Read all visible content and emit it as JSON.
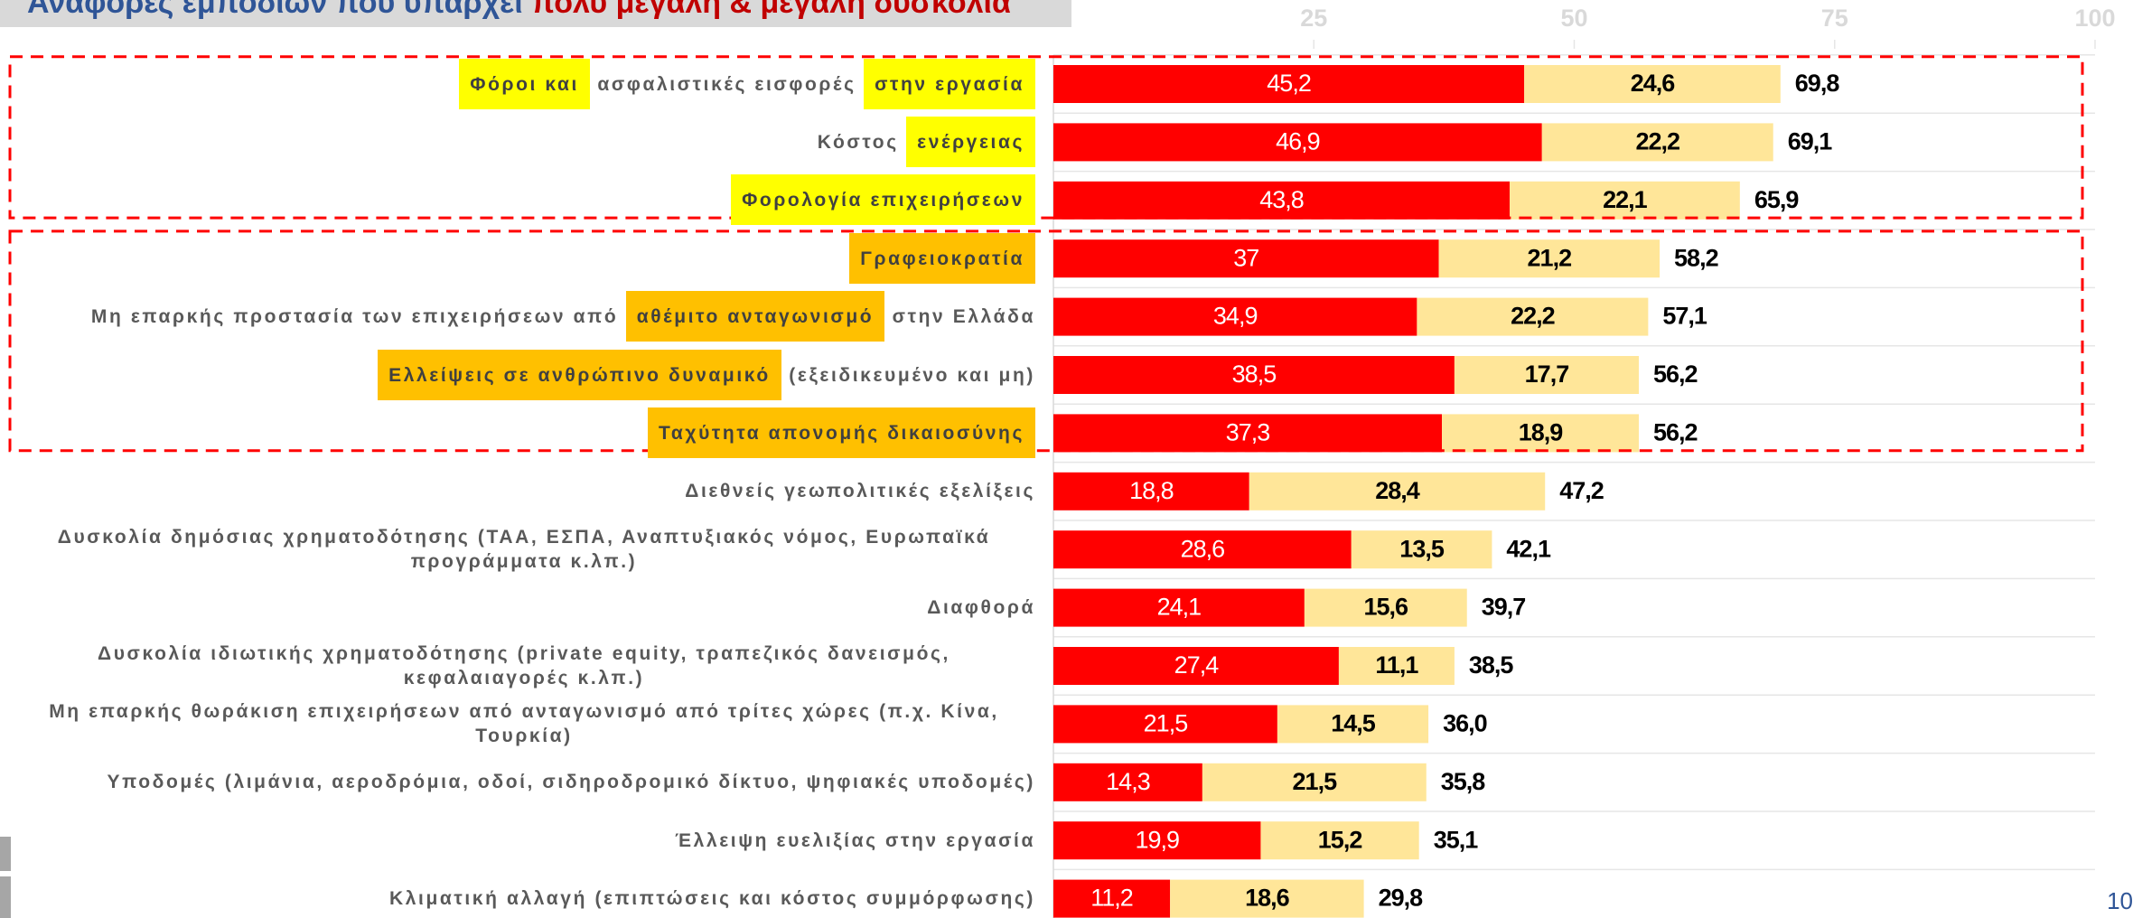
{
  "chart_data": {
    "type": "stacked-barh",
    "title": "Αναφορές εμποδίων που υπάρχει ",
    "title_highlight": "πολύ μεγάλη & μεγάλη δυσκολία",
    "title_color": "#2f5597",
    "title_highlight_color": "#c00000",
    "categories": [
      "Φόροι και ασφαλιστικές εισφορές στην εργασία",
      "Κόστος ενέργειας",
      "Φορολογία επιχειρήσεων",
      "Γραφειοκρατία",
      "Μη επαρκής προστασία των επιχειρήσεων από αθέμιτο ανταγωνισμό στην Ελλάδα",
      "Ελλείψεις σε ανθρώπινο δυναμικό (εξειδικευμένο και μη)",
      "Ταχύτητα απονομής δικαιοσύνης",
      "Διεθνείς γεωπολιτικές εξελίξεις",
      "Δυσκολία δημόσιας χρηματοδότησης (ΤΑΑ, ΕΣΠΑ, Αναπτυξιακός νόμος, Ευρωπαϊκά προγράμματα κ.λπ.)",
      "Διαφθορά",
      "Δυσκολία ιδιωτικής χρηματοδότησης (private equity, τραπεζικός δανεισμός, κεφαλαιαγορές κ.λπ.)",
      "Μη επαρκής θωράκιση επιχειρήσεων από ανταγωνισμό από τρίτες χώρες (π.χ. Κίνα, Τουρκία)",
      "Υποδομές (λιμάνια, αεροδρόμια, οδοί, σιδηροδρομικό δίκτυο, ψηφιακές υποδομές)",
      "Έλλειψη ευελιξίας στην εργασία",
      "Κλιματική αλλαγή (επιπτώσεις και κόστος συμμόρφωσης)"
    ],
    "label_highlights": [
      [
        [
          0,
          9,
          "#ffff00"
        ],
        [
          32,
          12,
          "#ffff00"
        ]
      ],
      [
        [
          7,
          9,
          "#ffff00"
        ]
      ],
      [
        [
          0,
          22,
          "#ffff00"
        ]
      ],
      [
        [
          0,
          13,
          "#ffc000"
        ]
      ],
      [
        [
          42,
          19,
          "#ffc000"
        ]
      ],
      [
        [
          0,
          31,
          "#ffc000"
        ]
      ],
      [
        [
          0,
          29,
          "#ffc000"
        ]
      ],
      [],
      [],
      [],
      [],
      [],
      [],
      [],
      []
    ],
    "groups": [
      [
        0,
        2
      ],
      [
        3,
        6
      ]
    ],
    "group_color": "#ff0000",
    "series": [
      {
        "color": "#ff0000",
        "label_color": "#ffffff",
        "values": [
          45.2,
          46.9,
          43.8,
          37,
          34.9,
          38.5,
          37.3,
          18.8,
          28.6,
          24.1,
          27.4,
          21.5,
          14.3,
          19.9,
          11.2
        ],
        "value_labels": [
          "45,2",
          "46,9",
          "43,8",
          "37",
          "34,9",
          "38,5",
          "37,3",
          "18,8",
          "28,6",
          "24,1",
          "27,4",
          "21,5",
          "14,3",
          "19,9",
          "11,2"
        ]
      },
      {
        "color": "#ffe699",
        "label_color": "#000000",
        "values": [
          24.6,
          22.2,
          22.1,
          21.2,
          22.2,
          17.7,
          18.9,
          28.4,
          13.5,
          15.6,
          11.1,
          14.5,
          21.5,
          15.2,
          18.6
        ],
        "value_labels": [
          "24,6",
          "22,2",
          "22,1",
          "21,2",
          "22,2",
          "17,7",
          "18,9",
          "28,4",
          "13,5",
          "15,6",
          "11,1",
          "14,5",
          "21,5",
          "15,2",
          "18,6"
        ]
      }
    ],
    "totals": [
      69.8,
      69.1,
      65.9,
      58.2,
      57.1,
      56.2,
      56.2,
      47.2,
      42.1,
      39.7,
      38.5,
      36.0,
      35.8,
      35.1,
      29.8
    ],
    "totals_labels": [
      "69,8",
      "69,1",
      "65,9",
      "58,2",
      "57,1",
      "56,2",
      "56,2",
      "47,2",
      "42,1",
      "39,7",
      "38,5",
      "36,0",
      "35,8",
      "35,1",
      "29,8"
    ],
    "xlim": [
      0,
      100
    ],
    "xticks": [
      25,
      50,
      75,
      100
    ]
  },
  "page_number": "10"
}
